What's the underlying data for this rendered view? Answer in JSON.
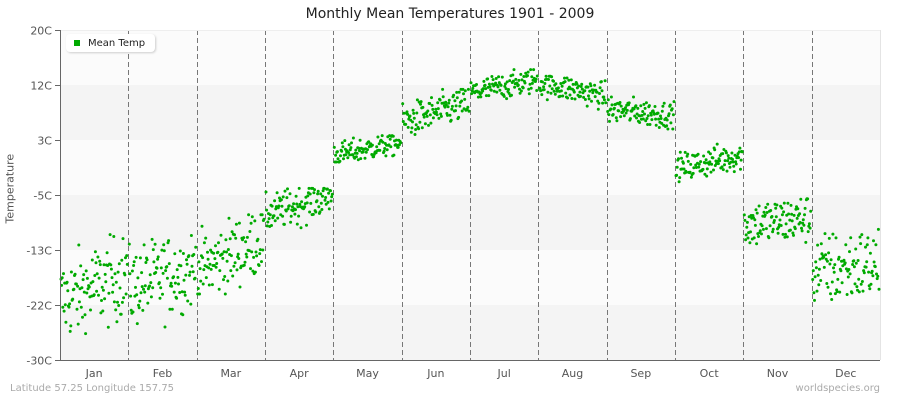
{
  "chart_data": {
    "type": "scatter",
    "title": "Monthly Mean Temperatures 1901 - 2009",
    "xlabel": "",
    "ylabel": "Temperature",
    "ylim": [
      -30,
      20
    ],
    "yticks": [
      "20C",
      "12C",
      "3C",
      "-5C",
      "-13C",
      "-22C",
      "-30C"
    ],
    "ytick_values": [
      20,
      11.67,
      3.33,
      -5,
      -13.33,
      -21.67,
      -30
    ],
    "categories": [
      "Jan",
      "Feb",
      "Mar",
      "Apr",
      "May",
      "Jun",
      "Jul",
      "Aug",
      "Sep",
      "Oct",
      "Nov",
      "Dec"
    ],
    "grid": true,
    "legend_position": "top-left",
    "series": [
      {
        "name": "Mean Temp",
        "color": "#00aa00",
        "points_per_month": 109,
        "month_mean": [
          -19,
          -17.5,
          -14,
          -6.5,
          2,
          7.5,
          11.5,
          11,
          7.5,
          0,
          -9,
          -16
        ],
        "month_spread": [
          3.2,
          3.0,
          2.6,
          1.4,
          0.9,
          1.3,
          1.0,
          1.0,
          1.0,
          1.1,
          1.8,
          2.8
        ],
        "month_trend": [
          4,
          3,
          5,
          3,
          2,
          3,
          2,
          -2,
          -1,
          2,
          1,
          1
        ],
        "month_min": [
          -26,
          -25,
          -20,
          -11,
          0,
          4,
          9,
          8,
          5,
          -3,
          -13,
          -23
        ],
        "month_max": [
          -11,
          -11,
          -8,
          -4,
          4,
          11,
          14,
          13,
          10,
          3,
          -4,
          -9
        ]
      }
    ]
  },
  "title": "Monthly Mean Temperatures 1901 - 2009",
  "legend": {
    "label": "Mean Temp",
    "color": "#00aa00"
  },
  "yaxis": {
    "label": "Temperature"
  },
  "footer": {
    "location": "Latitude 57.25 Longitude 157.75",
    "source": "worldspecies.org"
  },
  "colors": {
    "band_light": "#fbfbfb",
    "band_dark": "#f4f4f4",
    "axis": "#666666",
    "divider": "#777777",
    "point": "#00aa00"
  }
}
